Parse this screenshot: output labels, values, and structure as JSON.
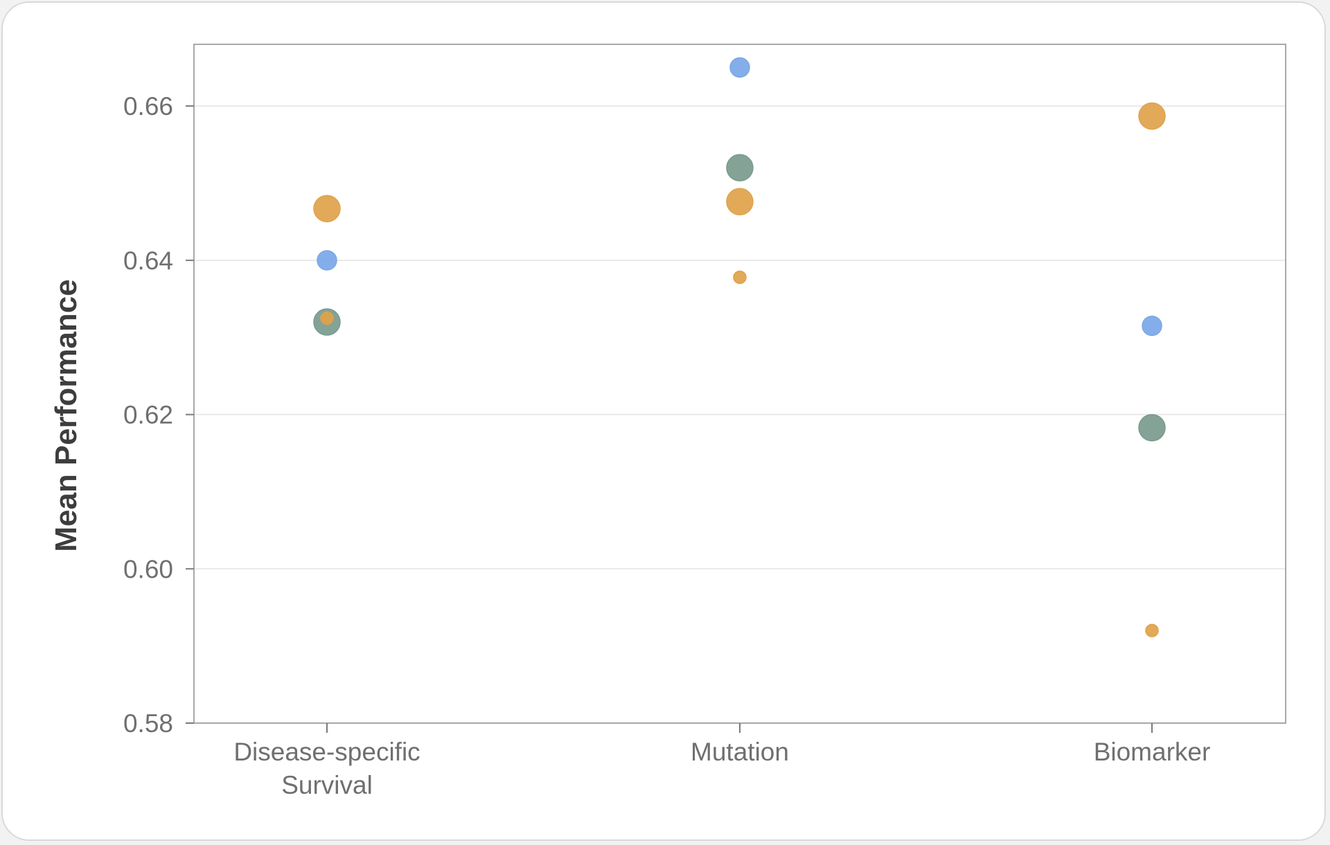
{
  "chart_data": {
    "type": "scatter",
    "title": "",
    "xlabel": "",
    "ylabel": "Mean Performance",
    "ylim": [
      0.58,
      0.668
    ],
    "yticks": [
      "0.58",
      "0.60",
      "0.62",
      "0.64",
      "0.66"
    ],
    "ytick_values": [
      0.58,
      0.6,
      0.62,
      0.64,
      0.66
    ],
    "grid": true,
    "categories": [
      {
        "key": "Disease-specific Survival",
        "lines": [
          "Disease-specific",
          "Survival"
        ]
      },
      {
        "key": "Mutation",
        "lines": [
          "Mutation"
        ]
      },
      {
        "key": "Biomarker",
        "lines": [
          "Biomarker"
        ]
      }
    ],
    "series": [
      {
        "name": "orange-large",
        "color": "#e0a24a",
        "size": "large",
        "values": [
          0.6467,
          0.6476,
          0.6587
        ]
      },
      {
        "name": "blue",
        "color": "#7aa7e8",
        "size": "medium",
        "values": [
          0.64,
          0.665,
          0.6315
        ]
      },
      {
        "name": "green",
        "color": "#7a9a8c",
        "size": "large",
        "values": [
          0.632,
          0.652,
          0.6183
        ]
      },
      {
        "name": "orange-small",
        "color": "#e0a24a",
        "size": "small",
        "values": [
          0.6325,
          0.6378,
          0.592
        ]
      }
    ]
  }
}
